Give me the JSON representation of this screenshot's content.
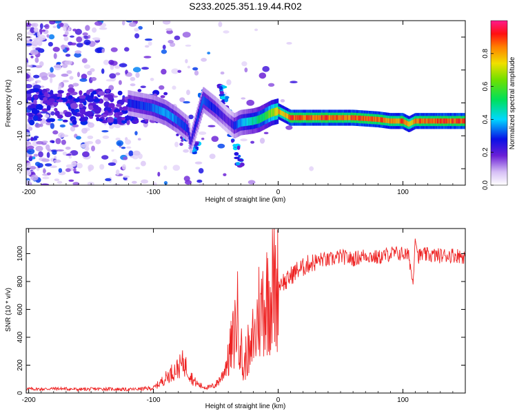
{
  "title": "S233.2025.351.19.44.R02",
  "chart_data": [
    {
      "type": "heatmap",
      "name": "spectrogram",
      "xlabel": "Height of straight line (km)",
      "ylabel": "Frequency (Hz)",
      "xlim": [
        -202,
        150
      ],
      "ylim": [
        -25,
        25
      ],
      "xticks": [
        -200,
        -100,
        0,
        100
      ],
      "xtick_labels": [
        "-200",
        "-100",
        "0",
        "100"
      ],
      "yticks": [
        -20,
        -10,
        0,
        10,
        20
      ],
      "ytick_labels": [
        "-20",
        "-10",
        "0",
        "10",
        "20"
      ],
      "colorbar": {
        "label": "Normalized spectral amplitude",
        "range": [
          0,
          1
        ],
        "ticks": [
          0.0,
          0.2,
          0.4,
          0.6,
          0.8
        ],
        "tick_labels": [
          "0.0",
          "0.2",
          "0.4",
          "0.6",
          "0.8"
        ]
      },
      "main_trace": {
        "x": [
          -120,
          -100,
          -90,
          -80,
          -72,
          -70,
          -60,
          -50,
          -40,
          -35,
          -30,
          -20,
          -15,
          -10,
          -5,
          0,
          5,
          10,
          20,
          40,
          60,
          80,
          90,
          100,
          105,
          110,
          120,
          150
        ],
        "freq": [
          0,
          -1.5,
          -3,
          -5.5,
          -8,
          -12,
          1,
          -2,
          -5.5,
          -7,
          -6,
          -5.5,
          -5,
          -4,
          -3,
          -2.5,
          -3.5,
          -4.5,
          -4.5,
          -4.5,
          -4.5,
          -5,
          -5.5,
          -5.5,
          -6.5,
          -5.5,
          -5.5,
          -5.5
        ],
        "amplitude": [
          0.3,
          0.35,
          0.4,
          0.35,
          0.3,
          0.25,
          0.35,
          0.3,
          0.2,
          0.3,
          0.4,
          0.5,
          0.55,
          0.6,
          0.7,
          0.85,
          0.8,
          0.95,
          0.95,
          0.95,
          0.95,
          0.95,
          0.9,
          0.95,
          0.8,
          0.9,
          0.95,
          0.95
        ]
      }
    },
    {
      "type": "line",
      "name": "snr",
      "xlabel": "Height of straight line (km)",
      "ylabel": "SNR (10 * v/v)",
      "xlim": [
        -202,
        150
      ],
      "ylim": [
        0,
        1180
      ],
      "xticks": [
        -200,
        -100,
        0,
        100
      ],
      "xtick_labels": [
        "-200",
        "-100",
        "0",
        "100"
      ],
      "yticks": [
        0,
        200,
        400,
        600,
        800,
        1000
      ],
      "ytick_labels": [
        "0",
        "200",
        "400",
        "600",
        "800",
        "1000"
      ],
      "color": "#ee2222",
      "series": [
        {
          "name": "SNR",
          "x": [
            -202,
            -190,
            -180,
            -170,
            -160,
            -150,
            -140,
            -130,
            -120,
            -110,
            -100,
            -95,
            -90,
            -85,
            -80,
            -76,
            -72,
            -68,
            -64,
            -60,
            -55,
            -50,
            -45,
            -40,
            -36,
            -33,
            -31,
            -28,
            -25,
            -22,
            -20,
            -18,
            -16,
            -14,
            -12,
            -10,
            -8,
            -6,
            -4,
            -2,
            0,
            3,
            6,
            10,
            15,
            20,
            25,
            30,
            35,
            40,
            50,
            60,
            70,
            80,
            90,
            100,
            105,
            108,
            110,
            112,
            115,
            120,
            130,
            140,
            150
          ],
          "y": [
            30,
            28,
            32,
            30,
            26,
            28,
            30,
            28,
            25,
            30,
            35,
            70,
            110,
            150,
            180,
            220,
            160,
            90,
            60,
            45,
            40,
            60,
            120,
            250,
            380,
            560,
            480,
            130,
            320,
            240,
            440,
            380,
            620,
            540,
            700,
            620,
            760,
            680,
            790,
            720,
            760,
            810,
            790,
            840,
            880,
            900,
            930,
            940,
            960,
            950,
            980,
            960,
            990,
            970,
            1000,
            1000,
            980,
            780,
            1150,
            980,
            990,
            990,
            985,
            990,
            980
          ]
        }
      ]
    }
  ]
}
